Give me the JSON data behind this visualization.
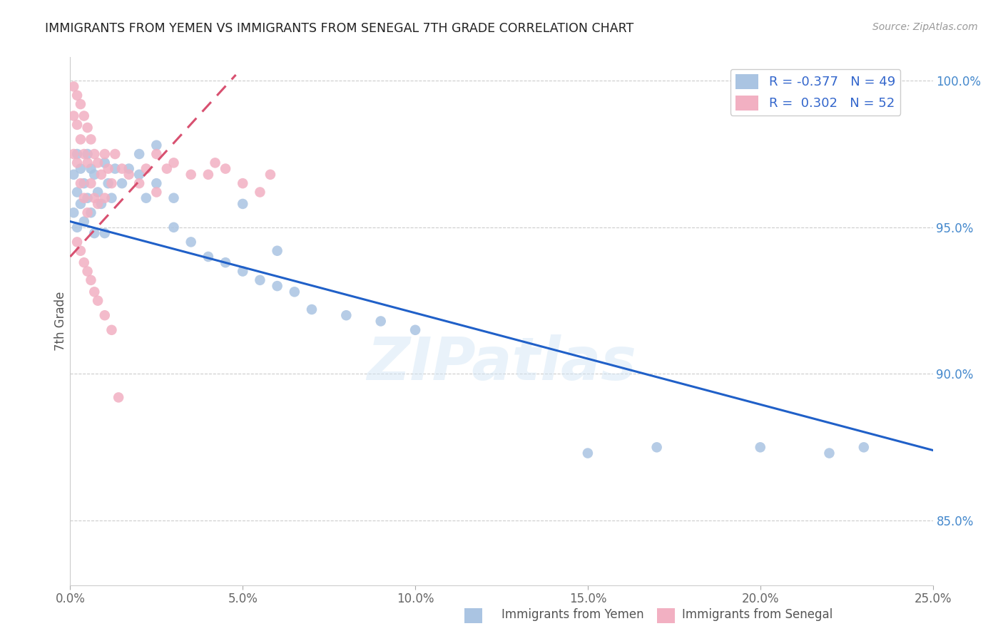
{
  "title": "IMMIGRANTS FROM YEMEN VS IMMIGRANTS FROM SENEGAL 7TH GRADE CORRELATION CHART",
  "source": "Source: ZipAtlas.com",
  "ylabel": "7th Grade",
  "xlim": [
    0.0,
    0.25
  ],
  "ylim": [
    0.828,
    1.008
  ],
  "xticks": [
    0.0,
    0.05,
    0.1,
    0.15,
    0.2,
    0.25
  ],
  "yticks": [
    0.85,
    0.9,
    0.95,
    1.0
  ],
  "xtick_labels": [
    "0.0%",
    "5.0%",
    "10.0%",
    "15.0%",
    "20.0%",
    "25.0%"
  ],
  "ytick_labels": [
    "85.0%",
    "90.0%",
    "95.0%",
    "100.0%"
  ],
  "legend_r_yemen": "-0.377",
  "legend_n_yemen": "49",
  "legend_r_senegal": "0.302",
  "legend_n_senegal": "52",
  "color_yemen": "#aac4e2",
  "color_senegal": "#f2b0c2",
  "line_color_yemen": "#2060c8",
  "line_color_senegal": "#d85070",
  "watermark": "ZIPatlas",
  "background_color": "#ffffff",
  "yemen_x": [
    0.001,
    0.001,
    0.002,
    0.002,
    0.002,
    0.003,
    0.003,
    0.004,
    0.004,
    0.005,
    0.005,
    0.006,
    0.006,
    0.007,
    0.007,
    0.008,
    0.009,
    0.01,
    0.01,
    0.011,
    0.012,
    0.013,
    0.015,
    0.017,
    0.02,
    0.022,
    0.025,
    0.03,
    0.035,
    0.04,
    0.045,
    0.05,
    0.055,
    0.06,
    0.065,
    0.07,
    0.08,
    0.09,
    0.1,
    0.02,
    0.025,
    0.03,
    0.05,
    0.06,
    0.15,
    0.17,
    0.2,
    0.22,
    0.23
  ],
  "yemen_y": [
    0.968,
    0.955,
    0.975,
    0.962,
    0.95,
    0.97,
    0.958,
    0.965,
    0.952,
    0.975,
    0.96,
    0.97,
    0.955,
    0.968,
    0.948,
    0.962,
    0.958,
    0.972,
    0.948,
    0.965,
    0.96,
    0.97,
    0.965,
    0.97,
    0.968,
    0.96,
    0.965,
    0.95,
    0.945,
    0.94,
    0.938,
    0.935,
    0.932,
    0.93,
    0.928,
    0.922,
    0.92,
    0.918,
    0.915,
    0.975,
    0.978,
    0.96,
    0.958,
    0.942,
    0.873,
    0.875,
    0.875,
    0.873,
    0.875
  ],
  "senegal_x": [
    0.001,
    0.001,
    0.001,
    0.002,
    0.002,
    0.002,
    0.003,
    0.003,
    0.003,
    0.004,
    0.004,
    0.004,
    0.005,
    0.005,
    0.005,
    0.006,
    0.006,
    0.007,
    0.007,
    0.008,
    0.008,
    0.009,
    0.01,
    0.01,
    0.011,
    0.012,
    0.013,
    0.015,
    0.017,
    0.02,
    0.022,
    0.025,
    0.025,
    0.028,
    0.03,
    0.035,
    0.04,
    0.042,
    0.045,
    0.05,
    0.055,
    0.058,
    0.002,
    0.003,
    0.004,
    0.005,
    0.006,
    0.007,
    0.008,
    0.01,
    0.012,
    0.014
  ],
  "senegal_y": [
    0.998,
    0.988,
    0.975,
    0.995,
    0.985,
    0.972,
    0.992,
    0.98,
    0.965,
    0.988,
    0.975,
    0.96,
    0.984,
    0.972,
    0.955,
    0.98,
    0.965,
    0.975,
    0.96,
    0.972,
    0.958,
    0.968,
    0.975,
    0.96,
    0.97,
    0.965,
    0.975,
    0.97,
    0.968,
    0.965,
    0.97,
    0.975,
    0.962,
    0.97,
    0.972,
    0.968,
    0.968,
    0.972,
    0.97,
    0.965,
    0.962,
    0.968,
    0.945,
    0.942,
    0.938,
    0.935,
    0.932,
    0.928,
    0.925,
    0.92,
    0.915,
    0.892
  ],
  "yemen_line_x0": 0.0,
  "yemen_line_x1": 0.25,
  "yemen_line_y0": 0.952,
  "yemen_line_y1": 0.874,
  "senegal_line_x0": 0.0,
  "senegal_line_x1": 0.048,
  "senegal_line_y0": 0.94,
  "senegal_line_y1": 1.002
}
